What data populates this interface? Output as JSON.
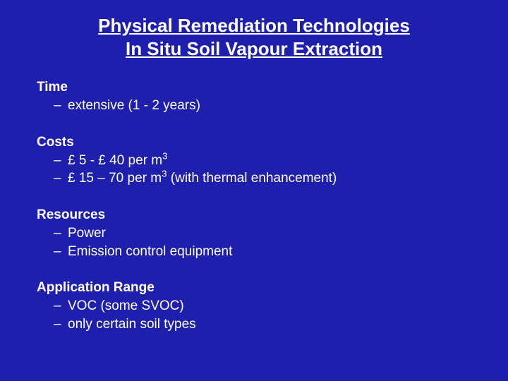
{
  "slide": {
    "background_color": "#1f1fad",
    "text_color": "#ffffff",
    "title_line1": "Physical Remediation Technologies",
    "title_line2": "In Situ Soil Vapour Extraction",
    "title_fontsize": 26,
    "body_fontsize": 19,
    "sections": [
      {
        "heading": "Time",
        "items": [
          {
            "text": "extensive (1 - 2 years)"
          }
        ]
      },
      {
        "heading": "Costs",
        "items": [
          {
            "text": "£ 5 - £ 40 per m",
            "sup": "3",
            "suffix": ""
          },
          {
            "text": "£ 15 – 70 per m",
            "sup": "3",
            "suffix": " (with thermal enhancement)"
          }
        ]
      },
      {
        "heading": "Resources",
        "items": [
          {
            "text": "Power"
          },
          {
            "text": "Emission control equipment"
          }
        ]
      },
      {
        "heading": "Application Range",
        "items": [
          {
            "text": "VOC (some SVOC)"
          },
          {
            "text": "only certain soil types"
          }
        ]
      }
    ]
  }
}
